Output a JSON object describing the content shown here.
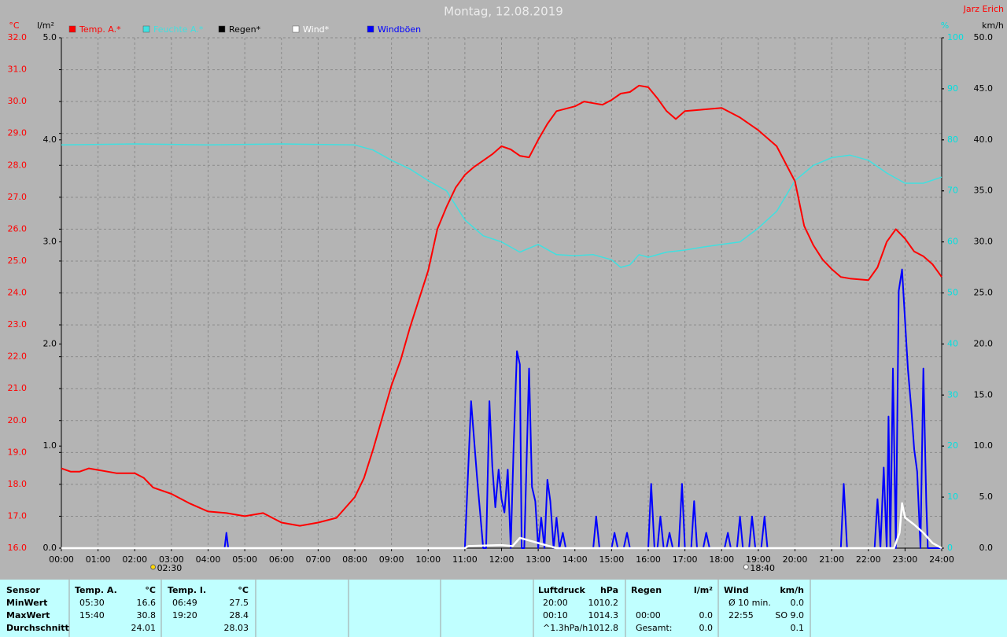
{
  "chart_data": {
    "type": "line",
    "title": "Montag, 12.08.2019",
    "author": "Jarz Erich",
    "axis_units": {
      "y": "°C",
      "y2": "l/m²",
      "y3": "%",
      "y4": "km/h"
    },
    "xlim": [
      0,
      24
    ],
    "xticks": [
      {
        "value": 0,
        "label": "00:00"
      },
      {
        "value": 1,
        "label": "01:00"
      },
      {
        "value": 2,
        "label": "02:00"
      },
      {
        "value": 3,
        "label": "03:00"
      },
      {
        "value": 4,
        "label": "04:00"
      },
      {
        "value": 5,
        "label": "05:00"
      },
      {
        "value": 6,
        "label": "06:00"
      },
      {
        "value": 7,
        "label": "07:00"
      },
      {
        "value": 8,
        "label": "08:00"
      },
      {
        "value": 9,
        "label": "09:00"
      },
      {
        "value": 10,
        "label": "10:00"
      },
      {
        "value": 11,
        "label": "11:00"
      },
      {
        "value": 12,
        "label": "12:00"
      },
      {
        "value": 13,
        "label": "13:00"
      },
      {
        "value": 14,
        "label": "14:00"
      },
      {
        "value": 15,
        "label": "15:00"
      },
      {
        "value": 16,
        "label": "16:00"
      },
      {
        "value": 17,
        "label": "17:00"
      },
      {
        "value": 18,
        "label": "18:00"
      },
      {
        "value": 19,
        "label": "19:00"
      },
      {
        "value": 20,
        "label": "20:00"
      },
      {
        "value": 21,
        "label": "21:00"
      },
      {
        "value": 22,
        "label": "22:00"
      },
      {
        "value": 23,
        "label": "23:00"
      },
      {
        "value": 24,
        "label": "24:00"
      }
    ],
    "ylim": [
      16,
      32
    ],
    "yticks": [
      {
        "value": 16,
        "label": "16.0"
      },
      {
        "value": 17,
        "label": "17.0"
      },
      {
        "value": 18,
        "label": "18.0"
      },
      {
        "value": 19,
        "label": "19.0"
      },
      {
        "value": 20,
        "label": "20.0"
      },
      {
        "value": 21,
        "label": "21.0"
      },
      {
        "value": 22,
        "label": "22.0"
      },
      {
        "value": 23,
        "label": "23.0"
      },
      {
        "value": 24,
        "label": "24.0"
      },
      {
        "value": 25,
        "label": "25.0"
      },
      {
        "value": 26,
        "label": "26.0"
      },
      {
        "value": 27,
        "label": "27.0"
      },
      {
        "value": 28,
        "label": "28.0"
      },
      {
        "value": 29,
        "label": "29.0"
      },
      {
        "value": 30,
        "label": "30.0"
      },
      {
        "value": 31,
        "label": "31.0"
      },
      {
        "value": 32,
        "label": "32.0"
      }
    ],
    "y2lim": [
      0,
      5
    ],
    "y2ticks": [
      {
        "value": 0,
        "label": "0.0"
      },
      {
        "value": 1,
        "label": "1.0"
      },
      {
        "value": 2,
        "label": "2.0"
      },
      {
        "value": 3,
        "label": "3.0"
      },
      {
        "value": 4,
        "label": "4.0"
      },
      {
        "value": 5,
        "label": "5.0"
      }
    ],
    "y3lim": [
      0,
      100
    ],
    "y3ticks": [
      0,
      10,
      20,
      30,
      40,
      50,
      60,
      70,
      80,
      90,
      100
    ],
    "y4lim": [
      0,
      50
    ],
    "y4ticks": [
      {
        "value": 0,
        "label": "0.0"
      },
      {
        "value": 5,
        "label": "5.0"
      },
      {
        "value": 10,
        "label": "10.0"
      },
      {
        "value": 15,
        "label": "15.0"
      },
      {
        "value": 20,
        "label": "20.0"
      },
      {
        "value": 25,
        "label": "25.0"
      },
      {
        "value": 30,
        "label": "30.0"
      },
      {
        "value": 35,
        "label": "35.0"
      },
      {
        "value": 40,
        "label": "40.0"
      },
      {
        "value": 45,
        "label": "45.0"
      },
      {
        "value": 50,
        "label": "50.0"
      }
    ],
    "grid": true,
    "sun_events": [
      {
        "value": 2.5,
        "label": "02:30"
      },
      {
        "value": 18.6667,
        "label": "18:40"
      }
    ],
    "series": [
      {
        "name": "Temp. A.*",
        "color": "#ff0000",
        "axis": "y",
        "x": [
          0,
          0.25,
          0.5,
          0.75,
          1,
          1.5,
          2,
          2.25,
          2.5,
          3,
          3.5,
          4,
          4.5,
          5,
          5.5,
          6,
          6.5,
          7,
          7.5,
          8,
          8.25,
          8.5,
          8.75,
          9,
          9.25,
          9.5,
          9.75,
          10,
          10.25,
          10.5,
          10.75,
          11,
          11.25,
          11.5,
          11.75,
          12,
          12.25,
          12.5,
          12.75,
          13,
          13.25,
          13.5,
          14,
          14.25,
          14.5,
          14.75,
          15,
          15.25,
          15.5,
          15.75,
          16,
          16.25,
          16.5,
          16.75,
          17,
          17.5,
          18,
          18.5,
          19,
          19.5,
          20,
          20.25,
          20.5,
          20.75,
          21,
          21.25,
          21.5,
          22,
          22.25,
          22.5,
          22.75,
          23,
          23.25,
          23.5,
          23.75,
          24
        ],
        "values": [
          18.5,
          18.4,
          18.4,
          18.5,
          18.45,
          18.35,
          18.35,
          18.2,
          17.9,
          17.7,
          17.4,
          17.15,
          17.1,
          17.0,
          17.1,
          16.8,
          16.7,
          16.8,
          16.95,
          17.6,
          18.2,
          19.1,
          20.1,
          21.1,
          21.9,
          22.9,
          23.8,
          24.7,
          26.0,
          26.7,
          27.3,
          27.7,
          27.95,
          28.15,
          28.35,
          28.6,
          28.5,
          28.3,
          28.25,
          28.8,
          29.3,
          29.7,
          29.85,
          30.0,
          29.95,
          29.9,
          30.05,
          30.25,
          30.3,
          30.5,
          30.45,
          30.1,
          29.7,
          29.45,
          29.7,
          29.75,
          29.8,
          29.5,
          29.1,
          28.6,
          27.5,
          26.1,
          25.5,
          25.05,
          24.75,
          24.5,
          24.45,
          24.4,
          24.8,
          25.6,
          26.0,
          25.7,
          25.3,
          25.15,
          24.9,
          24.5
        ]
      },
      {
        "name": "Feuchte A.*",
        "color": "#40e0e0",
        "axis": "y3",
        "x": [
          0,
          2,
          4,
          6,
          8,
          8.5,
          9,
          9.5,
          10,
          10.5,
          11,
          11.5,
          12,
          12.5,
          13,
          13.5,
          14,
          14.5,
          15,
          15.25,
          15.5,
          15.75,
          16,
          16.5,
          17,
          17.5,
          18,
          18.5,
          19,
          19.5,
          20,
          20.5,
          21,
          21.5,
          22,
          22.5,
          23,
          23.5,
          24
        ],
        "values": [
          79,
          79.2,
          79,
          79.2,
          79,
          78,
          76,
          74.3,
          72,
          70,
          64.3,
          61.2,
          60,
          58,
          59.5,
          57.5,
          57.3,
          57.5,
          56.5,
          55,
          55.5,
          57.5,
          57,
          58,
          58.4,
          59,
          59.5,
          60,
          62.7,
          66,
          72,
          75,
          76.5,
          77,
          76,
          73.5,
          71.5,
          71.5,
          72.7
        ]
      },
      {
        "name": "Regen*",
        "color": "#000000",
        "axis": "y2",
        "x": [],
        "values": []
      },
      {
        "name": "Wind*",
        "color": "#ffffff",
        "axis": "y4",
        "x": [
          0,
          11,
          11.1,
          12,
          12.3,
          12.5,
          12.7,
          13,
          13.5,
          22.7,
          22.85,
          22.92,
          23,
          23.25,
          23.5,
          23.75,
          24
        ],
        "values": [
          0,
          0,
          0.2,
          0.3,
          0.2,
          1.0,
          0.8,
          0.5,
          0,
          0,
          1.5,
          4.4,
          3.0,
          2.3,
          1.5,
          0.5,
          0
        ]
      },
      {
        "name": "Windböen",
        "color": "#0000ff",
        "axis": "y4",
        "x": [
          0,
          4.45,
          4.5,
          4.55,
          11.0,
          11.17,
          11.33,
          11.5,
          11.58,
          11.67,
          11.75,
          11.83,
          11.92,
          12.0,
          12.08,
          12.17,
          12.25,
          12.33,
          12.42,
          12.5,
          12.55,
          12.62,
          12.75,
          12.83,
          12.92,
          13.0,
          13.08,
          13.17,
          13.25,
          13.33,
          13.42,
          13.5,
          13.58,
          13.67,
          13.75,
          14.5,
          14.58,
          14.67,
          15.0,
          15.08,
          15.17,
          15.33,
          15.42,
          15.5,
          16.0,
          16.08,
          16.17,
          16.25,
          16.33,
          16.42,
          16.5,
          16.58,
          16.67,
          16.83,
          16.92,
          17.0,
          17.17,
          17.25,
          17.33,
          17.5,
          17.58,
          17.67,
          18.08,
          18.17,
          18.25,
          18.42,
          18.5,
          18.58,
          18.75,
          18.83,
          18.92,
          19.08,
          19.17,
          19.25,
          21.25,
          21.33,
          21.42,
          22.17,
          22.25,
          22.33,
          22.42,
          22.5,
          22.55,
          22.6,
          22.67,
          22.75,
          22.83,
          22.92,
          23.0,
          23.08,
          23.17,
          23.25,
          23.33,
          23.42,
          23.5,
          23.58,
          23.62,
          24
        ],
        "values": [
          0,
          0,
          1.5,
          0,
          0,
          14.4,
          7,
          0,
          0,
          14.4,
          8,
          4,
          7.7,
          4.8,
          3.5,
          7.7,
          0,
          10,
          19.3,
          18,
          0,
          0,
          17.6,
          6,
          4.6,
          0,
          3,
          0,
          6.7,
          4.6,
          0,
          3,
          0,
          1.5,
          0,
          0,
          3.1,
          0,
          0,
          1.5,
          0,
          0,
          1.5,
          0,
          0,
          6.3,
          0,
          0,
          3.1,
          0,
          0,
          1.5,
          0,
          0,
          6.3,
          0,
          0,
          4.6,
          0,
          0,
          1.5,
          0,
          0,
          1.5,
          0,
          0,
          3.1,
          0,
          0,
          3.1,
          0,
          0,
          3.1,
          0,
          0,
          6.3,
          0,
          0,
          4.8,
          0,
          7.9,
          0,
          12.9,
          0,
          17.6,
          0,
          25.2,
          27.3,
          22.3,
          17.5,
          13.7,
          9.7,
          7.5,
          0,
          17.6,
          4.5,
          0,
          0
        ]
      }
    ]
  },
  "table": {
    "rows": [
      {
        "label": "Sensor",
        "temp_a": [
          "Temp. A.",
          "°C"
        ],
        "temp_i": [
          "Temp. I.",
          "°C"
        ],
        "pressure": [
          "Luftdruck",
          "hPa"
        ],
        "rain": [
          "Regen",
          "l/m²"
        ],
        "wind": [
          "Wind",
          "km/h"
        ]
      },
      {
        "label": "MinWert",
        "temp_a": [
          "05:30",
          "16.6"
        ],
        "temp_i": [
          "06:49",
          "27.5"
        ],
        "pressure": [
          "20:00",
          "1010.2"
        ],
        "wind": [
          "Ø 10 min.",
          "0.0"
        ]
      },
      {
        "label": "MaxWert",
        "temp_a": [
          "15:40",
          "30.8"
        ],
        "temp_i": [
          "19:20",
          "28.4"
        ],
        "pressure": [
          "00:10",
          "1014.3"
        ],
        "rain": [
          "00:00",
          "0.0"
        ],
        "wind": [
          "22:55",
          "SO 9.0"
        ]
      },
      {
        "label": "Durchschnitt",
        "temp_a": [
          "24.01"
        ],
        "temp_i": [
          "28.03"
        ],
        "pressure": [
          "^1.3hPa/h",
          "1012.8"
        ],
        "rain": [
          "Gesamt:",
          "0.0"
        ],
        "wind": [
          "0.1"
        ]
      }
    ]
  }
}
